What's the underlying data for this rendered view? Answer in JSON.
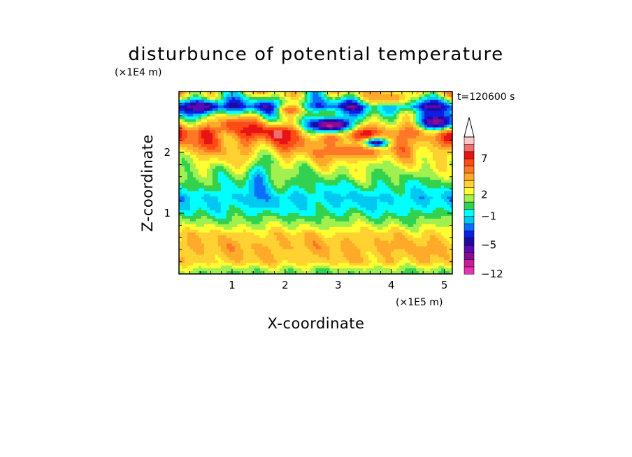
{
  "chart_data": {
    "type": "heatmap",
    "title": "disturbunce of potential temperature",
    "xlabel": "X-coordinate",
    "ylabel": "Z-coordinate",
    "x_scale_label": "(×1E5 m)",
    "y_scale_label": "(×1E4 m)",
    "time_label": "t=120600 s",
    "xlim": [
      0,
      5.15
    ],
    "ylim": [
      0,
      3.0
    ],
    "x_ticks": [
      1,
      2,
      3,
      4,
      5
    ],
    "y_ticks": [
      1,
      2
    ],
    "x_tick_labels": [
      "1",
      "2",
      "3",
      "4",
      "5"
    ],
    "y_tick_labels": [
      "1",
      "2"
    ],
    "colorbar": {
      "levels": [
        -12,
        -10,
        -8,
        -6,
        -5,
        -4,
        -3,
        -2,
        -1,
        0,
        1,
        2,
        3,
        4,
        5,
        6,
        7,
        8,
        9,
        10
      ],
      "labeled_levels": [
        -12,
        -5,
        -1,
        2,
        7
      ],
      "labels": [
        "−12",
        "−5",
        "−1",
        "2",
        "7"
      ],
      "colors": [
        "#e632b4",
        "#c81e96",
        "#8c0a96",
        "#5a0ab4",
        "#1e0aa0",
        "#0a1ee6",
        "#0a6eff",
        "#00c8f0",
        "#00ffff",
        "#32d250",
        "#a0f050",
        "#ffff32",
        "#ffd232",
        "#ffaa28",
        "#ff7828",
        "#ff4b14",
        "#e61414",
        "#f06e6e",
        "#ffc8c8"
      ],
      "extend": "max"
    },
    "profile": [
      {
        "z": 0.05,
        "value": 1.2
      },
      {
        "z": 0.2,
        "value": 3.6
      },
      {
        "z": 0.45,
        "value": 4.2
      },
      {
        "z": 0.65,
        "value": 3.5
      },
      {
        "z": 0.8,
        "value": 1.8
      },
      {
        "z": 0.95,
        "value": 0.5
      },
      {
        "z": 1.05,
        "value": -0.4
      },
      {
        "z": 1.25,
        "value": -1.3
      },
      {
        "z": 1.45,
        "value": 0.2
      },
      {
        "z": 1.65,
        "value": 1.5
      },
      {
        "z": 1.9,
        "value": 3.0
      },
      {
        "z": 2.15,
        "value": 5.2
      },
      {
        "z": 2.35,
        "value": 6.5
      },
      {
        "z": 2.55,
        "value": 2.5
      },
      {
        "z": 2.75,
        "value": -3.0
      },
      {
        "z": 2.95,
        "value": 2.0
      }
    ],
    "features": [
      {
        "x": 2.85,
        "z": 2.45,
        "value": -8.5,
        "rx": 0.45,
        "rz": 0.13
      },
      {
        "x": 4.85,
        "z": 2.5,
        "value": -6.5,
        "rx": 0.4,
        "rz": 0.15
      },
      {
        "x": 0.45,
        "z": 2.75,
        "value": -6.0,
        "rx": 0.35,
        "rz": 0.1
      },
      {
        "x": 3.7,
        "z": 2.15,
        "value": -6.0,
        "rx": 0.25,
        "rz": 0.08
      },
      {
        "x": 1.05,
        "z": 2.45,
        "value": 7.0,
        "rx": 0.3,
        "rz": 0.12
      },
      {
        "x": 1.85,
        "z": 2.3,
        "value": 9.0,
        "rx": 0.12,
        "rz": 0.1
      },
      {
        "x": 4.0,
        "z": 2.9,
        "value": 5.0,
        "rx": 0.4,
        "rz": 0.12
      },
      {
        "x": 2.1,
        "z": 2.7,
        "value": 6.0,
        "rx": 0.25,
        "rz": 0.1
      },
      {
        "x": 1.5,
        "z": 1.5,
        "value": -2.5,
        "rx": 0.2,
        "rz": 0.35
      },
      {
        "x": 3.2,
        "z": 2.0,
        "value": 6.0,
        "rx": 0.5,
        "rz": 0.12
      }
    ]
  }
}
